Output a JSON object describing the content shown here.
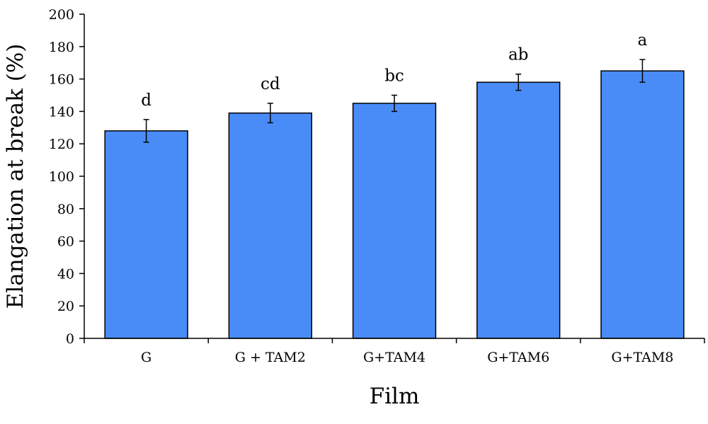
{
  "chart_data": {
    "type": "bar",
    "title": "",
    "xlabel": "Film",
    "ylabel": "Elangation at break (%)",
    "ylim": [
      0,
      200
    ],
    "yticks": [
      0,
      20,
      40,
      60,
      80,
      100,
      120,
      140,
      160,
      180,
      200
    ],
    "categories": [
      "G",
      "G + TAM2",
      "G+TAM4",
      "G+TAM6",
      "G+TAM8"
    ],
    "values": [
      128,
      139,
      145,
      158,
      165
    ],
    "errors": [
      7,
      6,
      5,
      5,
      7
    ],
    "significance_labels": [
      "d",
      "cd",
      "bc",
      "ab",
      "a"
    ],
    "grid": false,
    "bar_color": "#4a8cf7",
    "bar_edge_color": "#000000"
  }
}
